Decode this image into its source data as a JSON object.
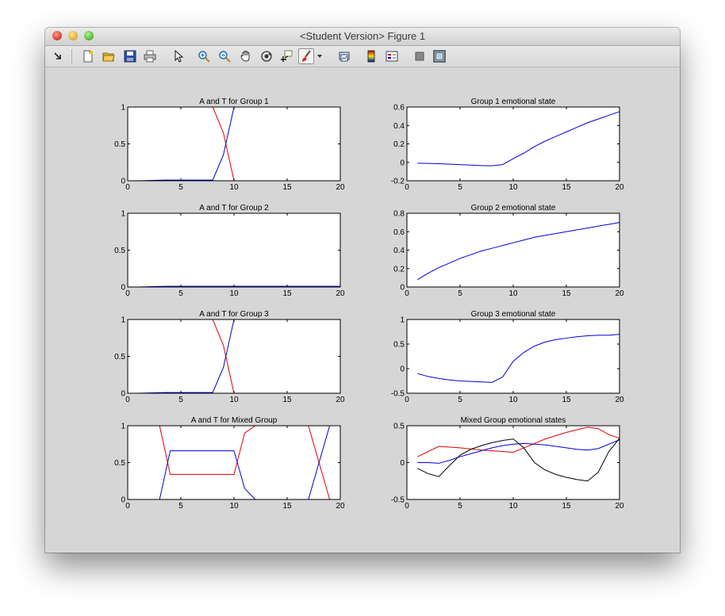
{
  "window": {
    "title": "<Student Version> Figure 1"
  },
  "toolbar": {
    "icons": [
      "dock-arrow-icon",
      "new-figure-icon",
      "open-file-icon",
      "save-icon",
      "print-icon",
      "edit-plot-arrow-icon",
      "zoom-in-icon",
      "zoom-out-icon",
      "pan-hand-icon",
      "rotate-3d-icon",
      "data-cursor-icon",
      "brush-icon",
      "brush-dropdown-icon",
      "link-plot-icon",
      "insert-colorbar-icon",
      "insert-legend-icon",
      "hide-plot-tools-icon",
      "show-plot-tools-icon"
    ]
  },
  "colors": {
    "red": "#e00000",
    "blue": "#0000d8",
    "black": "#000000"
  },
  "chart_data": [
    {
      "type": "line",
      "title": "A and T for Group 1",
      "xlim": [
        0,
        20
      ],
      "ylim": [
        0,
        1
      ],
      "xticks": [
        "0",
        "5",
        "10",
        "15",
        "20"
      ],
      "yticks": [
        "0",
        "0.5",
        "1"
      ],
      "series": [
        {
          "color": "red",
          "x": [
            1,
            8,
            9,
            10,
            20
          ],
          "y": [
            1,
            1,
            0.65,
            0,
            0
          ]
        },
        {
          "color": "blue",
          "x": [
            1,
            3.5,
            8,
            9,
            10,
            20
          ],
          "y": [
            0,
            0.01,
            0.01,
            0.35,
            1,
            1
          ]
        }
      ]
    },
    {
      "type": "line",
      "title": "Group 1 emotional state",
      "xlim": [
        0,
        20
      ],
      "ylim": [
        -0.2,
        0.6
      ],
      "xticks": [
        "0",
        "5",
        "10",
        "15",
        "20"
      ],
      "yticks": [
        "-0.2",
        "0",
        "0.2",
        "0.4",
        "0.6"
      ],
      "series": [
        {
          "color": "blue",
          "x": [
            1,
            2,
            3,
            4,
            5,
            6,
            7,
            8,
            9,
            10,
            11,
            12,
            13,
            14,
            15,
            16,
            17,
            18,
            19,
            20
          ],
          "y": [
            -0.01,
            -0.012,
            -0.015,
            -0.02,
            -0.025,
            -0.03,
            -0.035,
            -0.038,
            -0.025,
            0.04,
            0.1,
            0.17,
            0.23,
            0.28,
            0.33,
            0.38,
            0.43,
            0.47,
            0.51,
            0.55
          ]
        }
      ]
    },
    {
      "type": "line",
      "title": "A and T for Group 2",
      "xlim": [
        0,
        20
      ],
      "ylim": [
        0,
        1
      ],
      "xticks": [
        "0",
        "5",
        "10",
        "15",
        "20"
      ],
      "yticks": [
        "0",
        "0.5",
        "1"
      ],
      "series": [
        {
          "color": "red",
          "x": [
            1,
            20
          ],
          "y": [
            1,
            1
          ]
        },
        {
          "color": "blue",
          "x": [
            1,
            3.5,
            20
          ],
          "y": [
            0,
            0.01,
            0.01
          ]
        }
      ]
    },
    {
      "type": "line",
      "title": "Group 2 emotional state",
      "xlim": [
        0,
        20
      ],
      "ylim": [
        0,
        0.8
      ],
      "xticks": [
        "0",
        "5",
        "10",
        "15",
        "20"
      ],
      "yticks": [
        "0",
        "0.2",
        "0.4",
        "0.6",
        "0.8"
      ],
      "series": [
        {
          "color": "blue",
          "x": [
            1,
            2,
            3,
            4,
            5,
            6,
            7,
            8,
            9,
            10,
            11,
            12,
            13,
            14,
            15,
            16,
            17,
            18,
            19,
            20
          ],
          "y": [
            0.08,
            0.15,
            0.21,
            0.26,
            0.31,
            0.35,
            0.39,
            0.42,
            0.45,
            0.48,
            0.51,
            0.54,
            0.56,
            0.58,
            0.6,
            0.62,
            0.64,
            0.66,
            0.68,
            0.7
          ]
        }
      ]
    },
    {
      "type": "line",
      "title": "A and T for Group 3",
      "xlim": [
        0,
        20
      ],
      "ylim": [
        0,
        1
      ],
      "xticks": [
        "0",
        "5",
        "10",
        "15",
        "20"
      ],
      "yticks": [
        "0",
        "0.5",
        "1"
      ],
      "series": [
        {
          "color": "red",
          "x": [
            1,
            8,
            9,
            10,
            20
          ],
          "y": [
            1,
            1,
            0.65,
            0,
            0
          ]
        },
        {
          "color": "blue",
          "x": [
            1,
            3.5,
            8,
            9,
            10,
            20
          ],
          "y": [
            0,
            0.01,
            0.01,
            0.35,
            1,
            1
          ]
        }
      ]
    },
    {
      "type": "line",
      "title": "Group 3 emotional state",
      "xlim": [
        0,
        20
      ],
      "ylim": [
        -0.5,
        1
      ],
      "xticks": [
        "0",
        "5",
        "10",
        "15",
        "20"
      ],
      "yticks": [
        "-0.5",
        "0",
        "0.5",
        "1"
      ],
      "series": [
        {
          "color": "blue",
          "x": [
            1,
            2,
            3,
            4,
            5,
            6,
            7,
            8,
            9,
            10,
            11,
            12,
            13,
            14,
            15,
            16,
            17,
            18,
            19,
            20
          ],
          "y": [
            -0.1,
            -0.16,
            -0.2,
            -0.23,
            -0.25,
            -0.26,
            -0.27,
            -0.28,
            -0.17,
            0.15,
            0.33,
            0.46,
            0.54,
            0.59,
            0.62,
            0.65,
            0.67,
            0.68,
            0.68,
            0.7
          ]
        }
      ]
    },
    {
      "type": "line",
      "title": "A and T for Mixed Group",
      "xlim": [
        0,
        20
      ],
      "ylim": [
        0,
        1
      ],
      "xticks": [
        "0",
        "5",
        "10",
        "15",
        "20"
      ],
      "yticks": [
        "0",
        "0.5",
        "1"
      ],
      "series": [
        {
          "color": "red",
          "x": [
            1,
            3,
            4,
            10,
            11,
            12,
            17,
            19,
            20
          ],
          "y": [
            1,
            1,
            0.34,
            0.34,
            0.9,
            1,
            1,
            0,
            0
          ]
        },
        {
          "color": "blue",
          "x": [
            1,
            3,
            4,
            10,
            11,
            12,
            17,
            19,
            20
          ],
          "y": [
            0,
            0,
            0.66,
            0.66,
            0.15,
            0,
            0,
            1,
            1
          ]
        }
      ]
    },
    {
      "type": "line",
      "title": "Mixed Group emotional states",
      "xlim": [
        0,
        20
      ],
      "ylim": [
        -0.5,
        0.5
      ],
      "xticks": [
        "0",
        "5",
        "10",
        "15",
        "20"
      ],
      "yticks": [
        "-0.5",
        "0",
        "0.5"
      ],
      "series": [
        {
          "color": "red",
          "x": [
            1,
            3,
            5,
            7,
            9,
            10,
            11,
            13,
            15,
            17,
            18,
            19,
            20
          ],
          "y": [
            0.08,
            0.22,
            0.2,
            0.17,
            0.15,
            0.14,
            0.2,
            0.32,
            0.41,
            0.48,
            0.46,
            0.38,
            0.33
          ]
        },
        {
          "color": "blue",
          "x": [
            1,
            2,
            3,
            4,
            5,
            6,
            7,
            8,
            9,
            10,
            11,
            12,
            13,
            14,
            15,
            16,
            17,
            18,
            19,
            20
          ],
          "y": [
            0,
            0,
            -0.01,
            0.03,
            0.08,
            0.12,
            0.16,
            0.2,
            0.23,
            0.25,
            0.26,
            0.25,
            0.24,
            0.22,
            0.2,
            0.18,
            0.17,
            0.19,
            0.25,
            0.31
          ]
        },
        {
          "color": "black",
          "x": [
            1,
            2,
            3,
            4,
            5,
            6,
            7,
            8,
            9,
            10,
            11,
            12,
            13,
            14,
            15,
            16,
            17,
            18,
            19,
            20
          ],
          "y": [
            -0.08,
            -0.15,
            -0.19,
            -0.04,
            0.1,
            0.18,
            0.23,
            0.27,
            0.3,
            0.32,
            0.2,
            0,
            -0.1,
            -0.16,
            -0.2,
            -0.23,
            -0.25,
            -0.13,
            0.15,
            0.33
          ]
        }
      ]
    }
  ]
}
